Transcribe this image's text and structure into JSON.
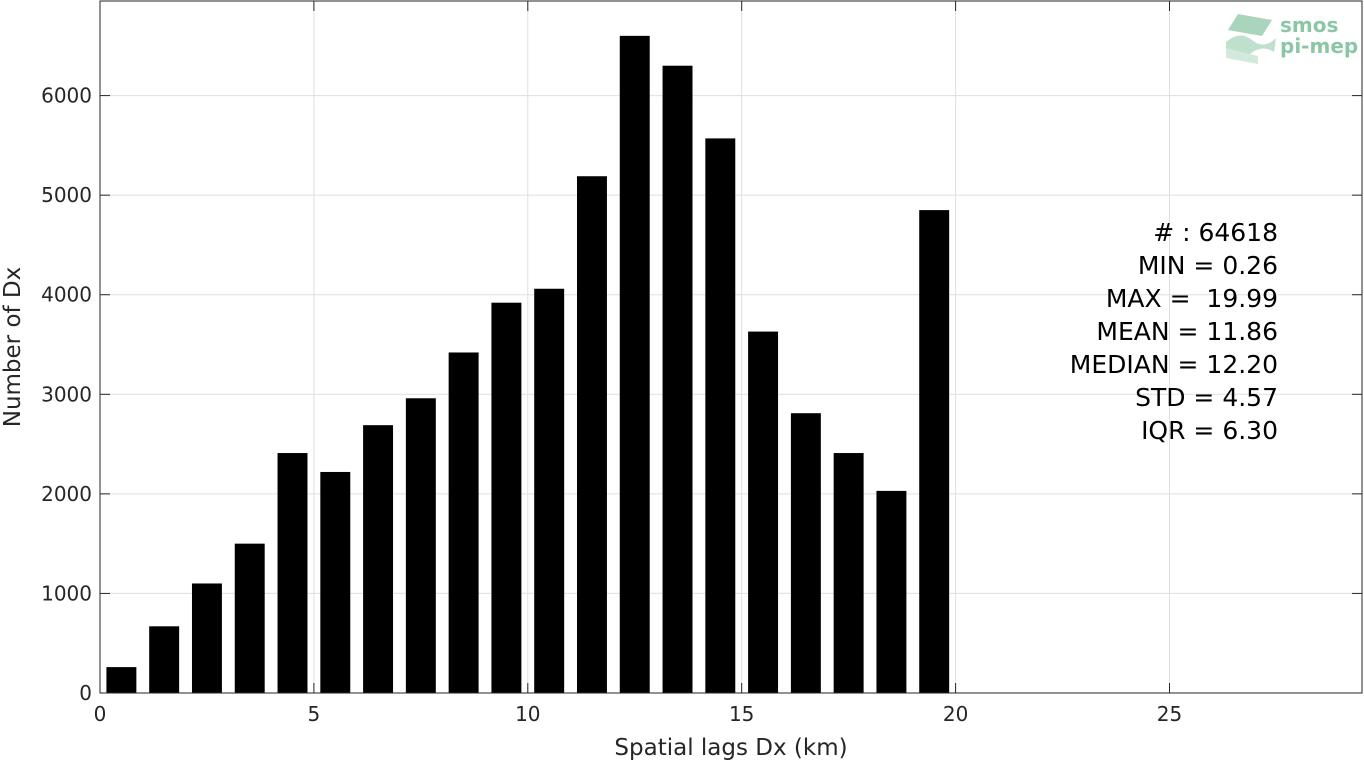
{
  "colors": {
    "bar": "#000000",
    "grid": "#dfdfdf",
    "axis": "#262626",
    "logo": "#8cc7a5",
    "background": "#ffffff"
  },
  "logo": {
    "line1": "smos",
    "line2": "pi-mep",
    "icon": "waves-logo-icon"
  },
  "stats": [
    "# : 64618",
    "MIN = 0.26",
    "MAX =  19.99",
    "MEAN = 11.86",
    "MEDIAN = 12.20",
    "STD = 4.57",
    "IQR = 6.30"
  ],
  "chart_data": {
    "type": "bar",
    "xlabel": "Spatial lags Dx (km)",
    "ylabel": "Number of Dx",
    "xlim": [
      0,
      29.5
    ],
    "ylim": [
      0,
      6950
    ],
    "xticks": [
      0,
      5,
      10,
      15,
      20,
      25
    ],
    "yticks": [
      0,
      1000,
      2000,
      3000,
      4000,
      5000,
      6000
    ],
    "grid": true,
    "bin_width": 0.7,
    "x": [
      0.5,
      1.5,
      2.5,
      3.5,
      4.5,
      5.5,
      6.5,
      7.5,
      8.5,
      9.5,
      10.5,
      11.5,
      12.5,
      13.5,
      14.5,
      15.5,
      16.5,
      17.5,
      18.5,
      19.5
    ],
    "values": [
      260,
      670,
      1100,
      1500,
      2410,
      2220,
      2690,
      2960,
      3420,
      3920,
      4060,
      5190,
      6600,
      6300,
      5570,
      3630,
      2810,
      2410,
      2030,
      4850
    ]
  }
}
